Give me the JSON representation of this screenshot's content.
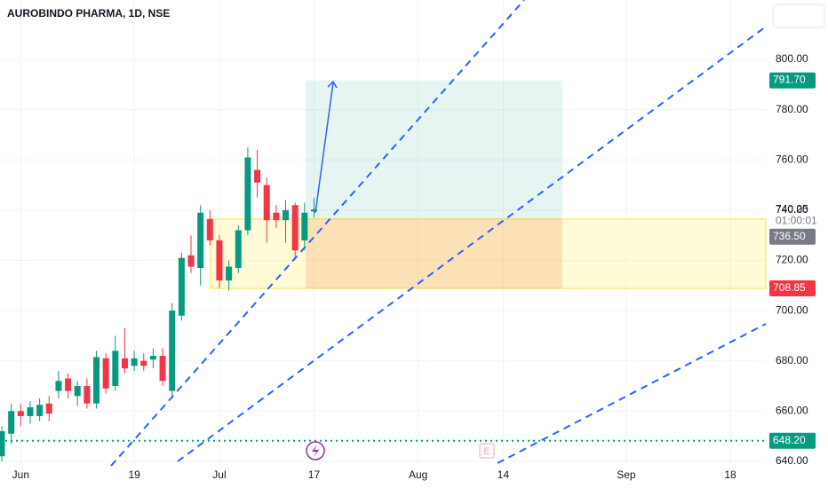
{
  "chart_data": {
    "type": "candlestick",
    "title": "AUROBINDO PHARMA, 1D, NSE",
    "categories": [
      null,
      null,
      null,
      null,
      null,
      null,
      null,
      null,
      null,
      null,
      null,
      null,
      null,
      null,
      null,
      null,
      null,
      null,
      null,
      null,
      null,
      null,
      null,
      null,
      null,
      null,
      null,
      null,
      null,
      null,
      null,
      null,
      null,
      null
    ],
    "open": [
      642,
      651,
      660,
      658,
      658,
      663,
      668,
      673,
      666,
      670,
      663,
      681,
      670,
      681,
      678,
      680,
      680.5,
      682,
      668,
      698,
      722,
      717,
      736.5,
      728,
      712,
      717,
      732,
      756,
      750,
      739,
      736,
      742,
      728,
      739.5
    ],
    "high": [
      654,
      663,
      663,
      664,
      665,
      666,
      676,
      675,
      672,
      673,
      684,
      683,
      690,
      693,
      684,
      683,
      685,
      685,
      703,
      723,
      730,
      742,
      740,
      730,
      720,
      734,
      765,
      764,
      753,
      742,
      744,
      743,
      743,
      745
    ],
    "low": [
      640,
      647,
      654,
      655,
      656,
      656,
      665,
      665,
      662,
      661,
      661,
      667,
      668,
      675,
      676,
      676,
      677,
      670,
      665,
      696,
      715,
      710,
      726,
      709,
      708,
      715,
      730,
      745,
      727,
      733,
      727,
      721,
      724,
      737
    ],
    "close": [
      652,
      660,
      658,
      661.5,
      662.5,
      659,
      672,
      668,
      670,
      663,
      681.5,
      669,
      684,
      677,
      681,
      678,
      682,
      672,
      700,
      721,
      717.5,
      739,
      728,
      712,
      717.5,
      732,
      761,
      751,
      736,
      736,
      740,
      724,
      739,
      740.25
    ],
    "up_color": "#089981",
    "down_color": "#f23645",
    "xlim": [
      -0.19,
      80.75
    ],
    "xticks": [
      {
        "value": 2,
        "label": "Jun"
      },
      {
        "value": 14,
        "label": "19"
      },
      {
        "value": 23,
        "label": "Jul"
      },
      {
        "value": 33,
        "label": "17"
      },
      {
        "value": 44,
        "label": "Aug"
      },
      {
        "value": 53,
        "label": "14"
      },
      {
        "value": 66,
        "label": "Sep"
      },
      {
        "value": 77,
        "label": "18"
      }
    ],
    "ylim": [
      638.2,
      823.7
    ],
    "yticks": [
      {
        "value": 640,
        "label": "640.00"
      },
      {
        "value": 660,
        "label": "660.00"
      },
      {
        "value": 680,
        "label": "680.00"
      },
      {
        "value": 700,
        "label": "700.00"
      },
      {
        "value": 720,
        "label": "720.00"
      },
      {
        "value": 740,
        "label": "740.00"
      },
      {
        "value": 760,
        "label": "760.00"
      },
      {
        "value": 780,
        "label": "780.00"
      },
      {
        "value": 800,
        "label": "800.00"
      }
    ],
    "last_price": {
      "value": 740.25,
      "label": "740.25"
    },
    "countdown": "01:00:01",
    "levels": [
      {
        "value": 791.7,
        "label": "791.70",
        "color": "#089981"
      },
      {
        "value": 736.5,
        "label": "736.50",
        "color": "#787b86"
      },
      {
        "value": 708.85,
        "label": "708.85",
        "color": "#f23645"
      },
      {
        "value": 648.2,
        "label": "648.20",
        "color": "#089981"
      }
    ]
  }
}
